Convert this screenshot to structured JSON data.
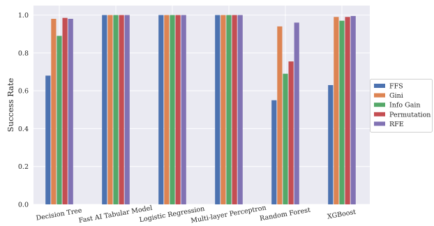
{
  "chart_data": {
    "type": "bar",
    "title": "",
    "xlabel": "",
    "ylabel": "Success Rate",
    "ylim": [
      0,
      1.05
    ],
    "yticks": [
      "0.0",
      "0.2",
      "0.4",
      "0.6",
      "0.8",
      "1.0"
    ],
    "ytick_values": [
      0,
      0.2,
      0.4,
      0.6,
      0.8,
      1.0
    ],
    "grid": true,
    "legend_position": "right",
    "categories": [
      "Decision Tree",
      "Fast AI Tabular Model",
      "Logistic Regression",
      "Multi-layer Perceptron",
      "Random Forest",
      "XGBoost"
    ],
    "series": [
      {
        "name": "FFS",
        "color": "#4c72b0",
        "values": [
          0.68,
          1.0,
          1.0,
          1.0,
          0.55,
          0.63
        ]
      },
      {
        "name": "Gini",
        "color": "#dd8452",
        "values": [
          0.98,
          1.0,
          1.0,
          1.0,
          0.94,
          0.99
        ]
      },
      {
        "name": "Info Gain",
        "color": "#55a868",
        "values": [
          0.89,
          1.0,
          1.0,
          1.0,
          0.69,
          0.97
        ]
      },
      {
        "name": "Permutation",
        "color": "#c44e52",
        "values": [
          0.985,
          1.0,
          1.0,
          1.0,
          0.755,
          0.99
        ]
      },
      {
        "name": "RFE",
        "color": "#8172b3",
        "values": [
          0.98,
          1.0,
          1.0,
          1.0,
          0.96,
          0.995
        ]
      }
    ]
  },
  "colors": {
    "plot_background": "#eaeaf2",
    "grid": "#ffffff"
  }
}
